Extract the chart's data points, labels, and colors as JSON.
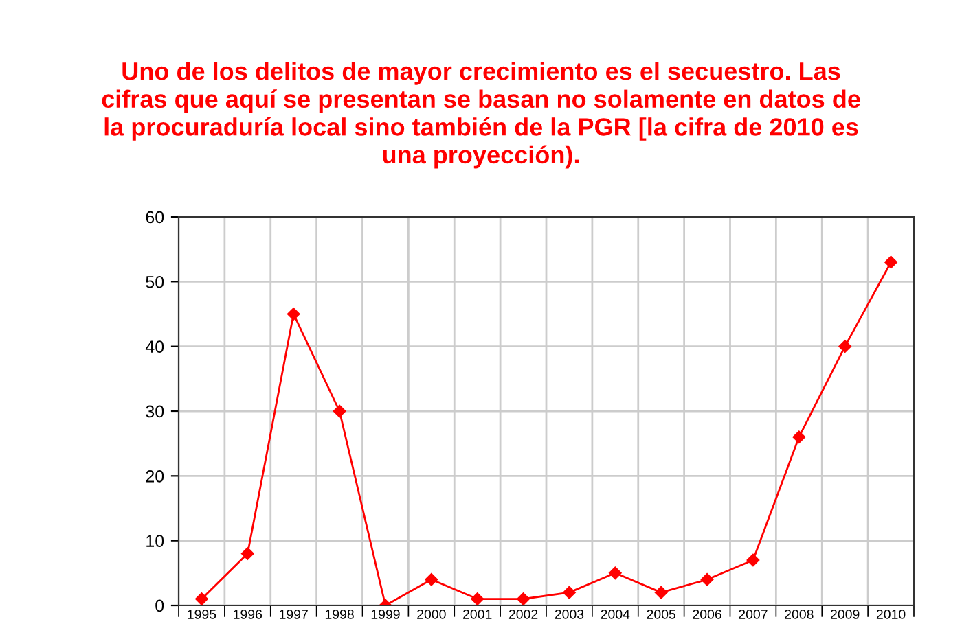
{
  "chart_data": {
    "type": "line",
    "title": "Uno de los delitos de mayor crecimiento es el secuestro. Las\ncifras que aquí se presentan se basan no solamente en datos de\nla procuraduría local sino también de la PGR [la cifra de 2010 es\nuna proyección).",
    "categories": [
      "1995",
      "1996",
      "1997",
      "1998",
      "1999",
      "2000",
      "2001",
      "2002",
      "2003",
      "2004",
      "2005",
      "2006",
      "2007",
      "2008",
      "2009",
      "2010"
    ],
    "series": [
      {
        "color": "#ff0000",
        "values": [
          1,
          8,
          45,
          30,
          0,
          4,
          1,
          1,
          2,
          5,
          2,
          4,
          7,
          26,
          40,
          53
        ]
      }
    ],
    "ylim": [
      0,
      60
    ],
    "yticks": [
      0,
      10,
      20,
      30,
      40,
      50,
      60
    ],
    "grid": true,
    "marker": "diamond",
    "line_style": "solid"
  }
}
